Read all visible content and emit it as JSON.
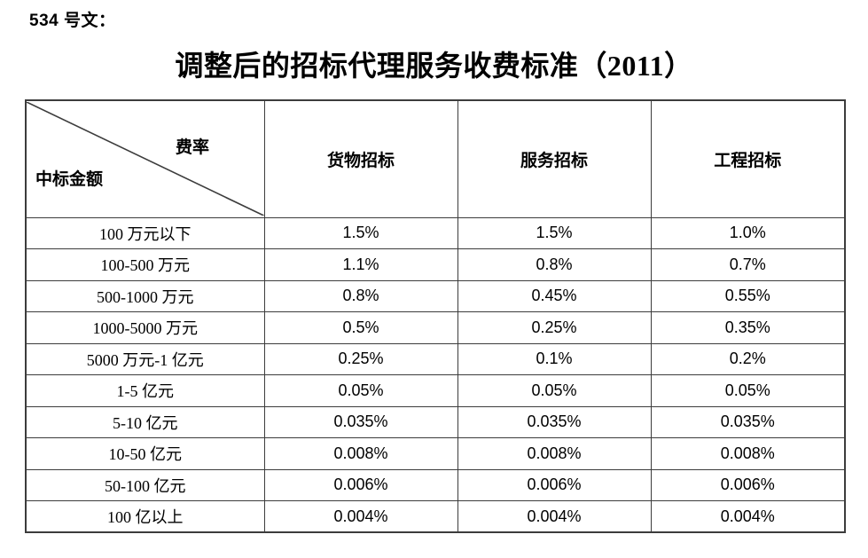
{
  "page": {
    "doc_ref": "534 号文：",
    "title": "调整后的招标代理服务收费标准（2011）"
  },
  "table": {
    "corner": {
      "top_right": "费率",
      "bottom_left": "中标金额"
    },
    "columns": [
      "货物招标",
      "服务招标",
      "工程招标"
    ],
    "rows": [
      {
        "label": "100 万元以下",
        "values": [
          "1.5%",
          "1.5%",
          "1.0%"
        ]
      },
      {
        "label": "100-500 万元",
        "values": [
          "1.1%",
          "0.8%",
          "0.7%"
        ]
      },
      {
        "label": "500-1000 万元",
        "values": [
          "0.8%",
          "0.45%",
          "0.55%"
        ]
      },
      {
        "label": "1000-5000 万元",
        "values": [
          "0.5%",
          "0.25%",
          "0.35%"
        ]
      },
      {
        "label": "5000 万元-1 亿元",
        "values": [
          "0.25%",
          "0.1%",
          "0.2%"
        ]
      },
      {
        "label": "1-5 亿元",
        "values": [
          "0.05%",
          "0.05%",
          "0.05%"
        ]
      },
      {
        "label": "5-10 亿元",
        "values": [
          "0.035%",
          "0.035%",
          "0.035%"
        ]
      },
      {
        "label": "10-50 亿元",
        "values": [
          "0.008%",
          "0.008%",
          "0.008%"
        ]
      },
      {
        "label": "50-100 亿元",
        "values": [
          "0.006%",
          "0.006%",
          "0.006%"
        ]
      },
      {
        "label": "100 亿以上",
        "values": [
          "0.004%",
          "0.004%",
          "0.004%"
        ]
      }
    ]
  },
  "colors": {
    "text": "#000000",
    "border": "#3c3c3c",
    "background": "#ffffff"
  }
}
